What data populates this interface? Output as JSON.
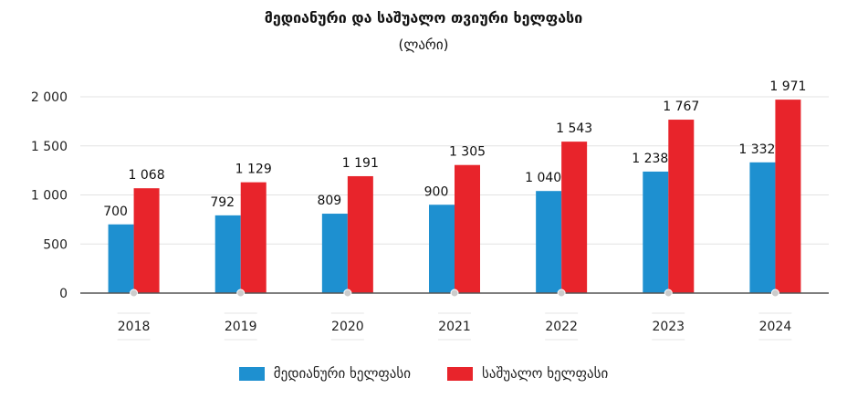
{
  "chart_data": {
    "type": "bar",
    "title": "მედიანური და საშუალო თვიური ხელფასი",
    "subtitle": "(ლარი)",
    "categories": [
      "2018",
      "2019",
      "2020",
      "2021",
      "2022",
      "2023",
      "2024"
    ],
    "series": [
      {
        "name": "მედიანური ხელფასი",
        "color": "#1e90d0",
        "values": [
          700,
          792,
          809,
          900,
          1040,
          1238,
          1332
        ],
        "labels": [
          "700",
          "792",
          "809",
          "900",
          "1 040",
          "1 238",
          "1 332"
        ]
      },
      {
        "name": "საშუალო ხელფასი",
        "color": "#e8242b",
        "values": [
          1068,
          1129,
          1191,
          1305,
          1543,
          1767,
          1971
        ],
        "labels": [
          "1 068",
          "1 129",
          "1 191",
          "1 305",
          "1 543",
          "1 767",
          "1 971"
        ]
      }
    ],
    "yticks": [
      0,
      500,
      1000,
      1500,
      2000
    ],
    "ytick_labels": [
      "0",
      "500",
      "1 000",
      "1 500",
      "2 000"
    ],
    "ylim": [
      0,
      2000
    ],
    "xlabel": "",
    "ylabel": "",
    "grid": true,
    "legend_position": "bottom"
  }
}
